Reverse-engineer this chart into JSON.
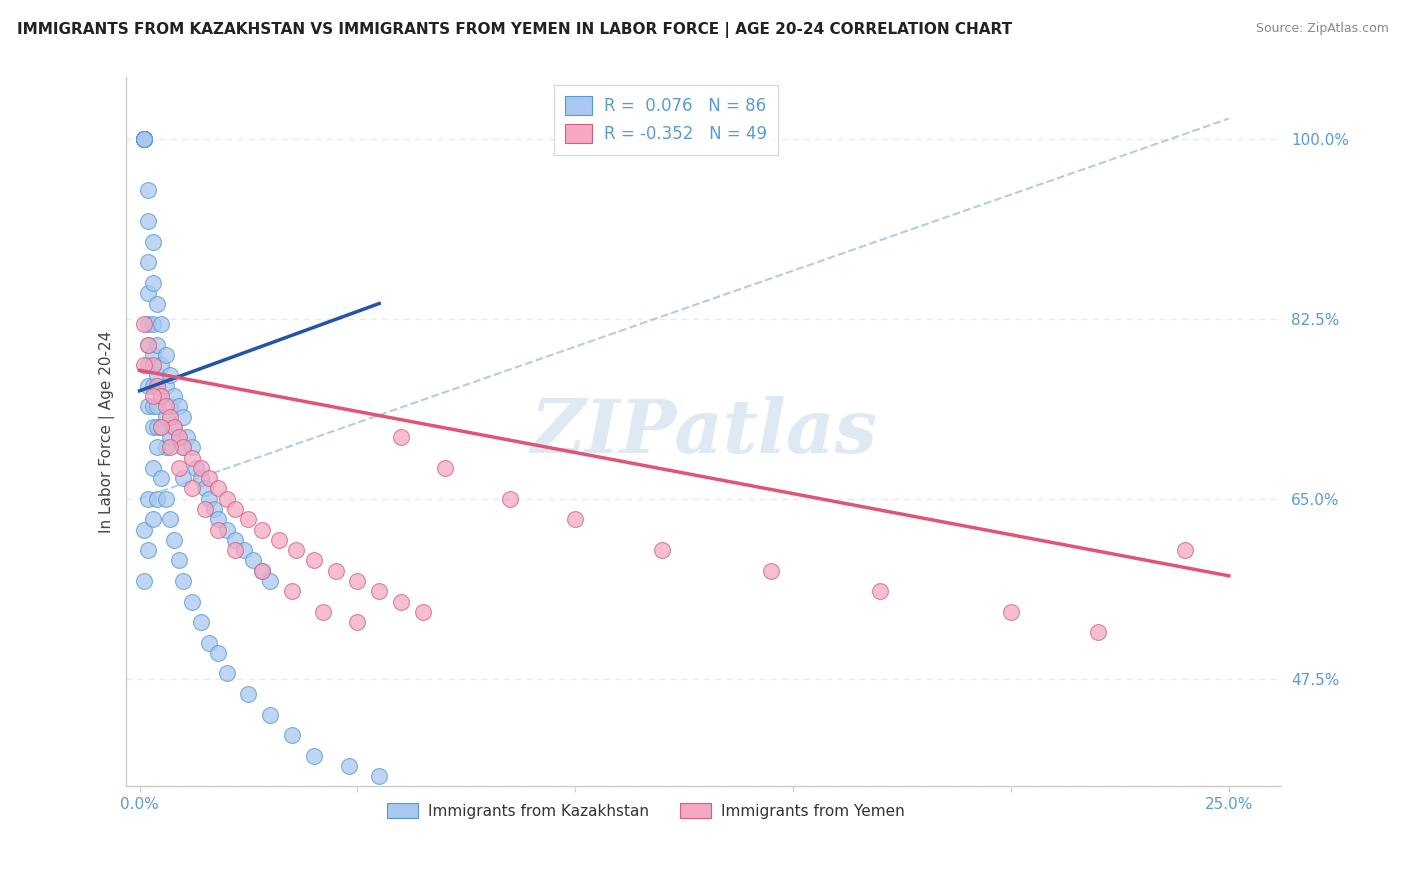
{
  "title": "IMMIGRANTS FROM KAZAKHSTAN VS IMMIGRANTS FROM YEMEN IN LABOR FORCE | AGE 20-24 CORRELATION CHART",
  "source": "Source: ZipAtlas.com",
  "ylabel": "In Labor Force | Age 20-24",
  "xlim": [
    -0.003,
    0.262
  ],
  "ylim": [
    0.37,
    1.06
  ],
  "xtick_positions": [
    0.0,
    0.05,
    0.1,
    0.15,
    0.2,
    0.25
  ],
  "xticklabels": [
    "0.0%",
    "",
    "",
    "",
    "",
    "25.0%"
  ],
  "ytick_right_positions": [
    1.0,
    0.825,
    0.65,
    0.475
  ],
  "ytick_right_labels": [
    "100.0%",
    "82.5%",
    "65.0%",
    "47.5%"
  ],
  "kaz_color_fill": "#a8c8f0",
  "kaz_color_edge": "#5599cc",
  "yem_color_fill": "#f5a8c0",
  "yem_color_edge": "#d06080",
  "kaz_line_color": "#2255aa",
  "yem_line_color": "#e05575",
  "dash_line_color": "#aac8e0",
  "grid_color": "#e8e8e8",
  "grid_dash": [
    4,
    4
  ],
  "watermark_text": "ZIPatlas",
  "watermark_color": "#c5d8ea",
  "title_color": "#222222",
  "source_color": "#888888",
  "ylabel_color": "#444444",
  "tick_color": "#5b9bd5",
  "legend_text_color": "#5b9bd5",
  "bottom_legend_color": "#333333",
  "R_kaz": 0.076,
  "N_kaz": 86,
  "R_yem": -0.352,
  "N_yem": 49,
  "kaz_x": [
    0.001,
    0.001,
    0.001,
    0.001,
    0.001,
    0.001,
    0.001,
    0.001,
    0.002,
    0.002,
    0.002,
    0.002,
    0.002,
    0.002,
    0.002,
    0.002,
    0.002,
    0.003,
    0.003,
    0.003,
    0.003,
    0.003,
    0.003,
    0.003,
    0.004,
    0.004,
    0.004,
    0.004,
    0.004,
    0.005,
    0.005,
    0.005,
    0.005,
    0.006,
    0.006,
    0.006,
    0.006,
    0.007,
    0.007,
    0.007,
    0.008,
    0.008,
    0.009,
    0.009,
    0.01,
    0.01,
    0.01,
    0.011,
    0.012,
    0.013,
    0.014,
    0.015,
    0.016,
    0.017,
    0.018,
    0.02,
    0.022,
    0.024,
    0.026,
    0.028,
    0.03,
    0.001,
    0.001,
    0.002,
    0.002,
    0.003,
    0.003,
    0.004,
    0.004,
    0.005,
    0.006,
    0.007,
    0.008,
    0.009,
    0.01,
    0.012,
    0.014,
    0.016,
    0.018,
    0.02,
    0.025,
    0.03,
    0.035,
    0.04,
    0.048,
    0.055
  ],
  "kaz_y": [
    1.0,
    1.0,
    1.0,
    1.0,
    1.0,
    1.0,
    1.0,
    1.0,
    0.95,
    0.92,
    0.88,
    0.85,
    0.82,
    0.8,
    0.78,
    0.76,
    0.74,
    0.9,
    0.86,
    0.82,
    0.79,
    0.76,
    0.74,
    0.72,
    0.84,
    0.8,
    0.77,
    0.74,
    0.72,
    0.82,
    0.78,
    0.75,
    0.72,
    0.79,
    0.76,
    0.73,
    0.7,
    0.77,
    0.74,
    0.71,
    0.75,
    0.72,
    0.74,
    0.71,
    0.73,
    0.7,
    0.67,
    0.71,
    0.7,
    0.68,
    0.67,
    0.66,
    0.65,
    0.64,
    0.63,
    0.62,
    0.61,
    0.6,
    0.59,
    0.58,
    0.57,
    0.62,
    0.57,
    0.65,
    0.6,
    0.68,
    0.63,
    0.7,
    0.65,
    0.67,
    0.65,
    0.63,
    0.61,
    0.59,
    0.57,
    0.55,
    0.53,
    0.51,
    0.5,
    0.48,
    0.46,
    0.44,
    0.42,
    0.4,
    0.39,
    0.38
  ],
  "yem_x": [
    0.001,
    0.002,
    0.003,
    0.004,
    0.005,
    0.006,
    0.007,
    0.008,
    0.009,
    0.01,
    0.012,
    0.014,
    0.016,
    0.018,
    0.02,
    0.022,
    0.025,
    0.028,
    0.032,
    0.036,
    0.04,
    0.045,
    0.05,
    0.055,
    0.06,
    0.065,
    0.001,
    0.003,
    0.005,
    0.007,
    0.009,
    0.012,
    0.015,
    0.018,
    0.022,
    0.028,
    0.035,
    0.042,
    0.05,
    0.06,
    0.07,
    0.085,
    0.1,
    0.12,
    0.145,
    0.17,
    0.2,
    0.22,
    0.24
  ],
  "yem_y": [
    0.82,
    0.8,
    0.78,
    0.76,
    0.75,
    0.74,
    0.73,
    0.72,
    0.71,
    0.7,
    0.69,
    0.68,
    0.67,
    0.66,
    0.65,
    0.64,
    0.63,
    0.62,
    0.61,
    0.6,
    0.59,
    0.58,
    0.57,
    0.56,
    0.55,
    0.54,
    0.78,
    0.75,
    0.72,
    0.7,
    0.68,
    0.66,
    0.64,
    0.62,
    0.6,
    0.58,
    0.56,
    0.54,
    0.53,
    0.71,
    0.68,
    0.65,
    0.63,
    0.6,
    0.58,
    0.56,
    0.54,
    0.52,
    0.6
  ]
}
